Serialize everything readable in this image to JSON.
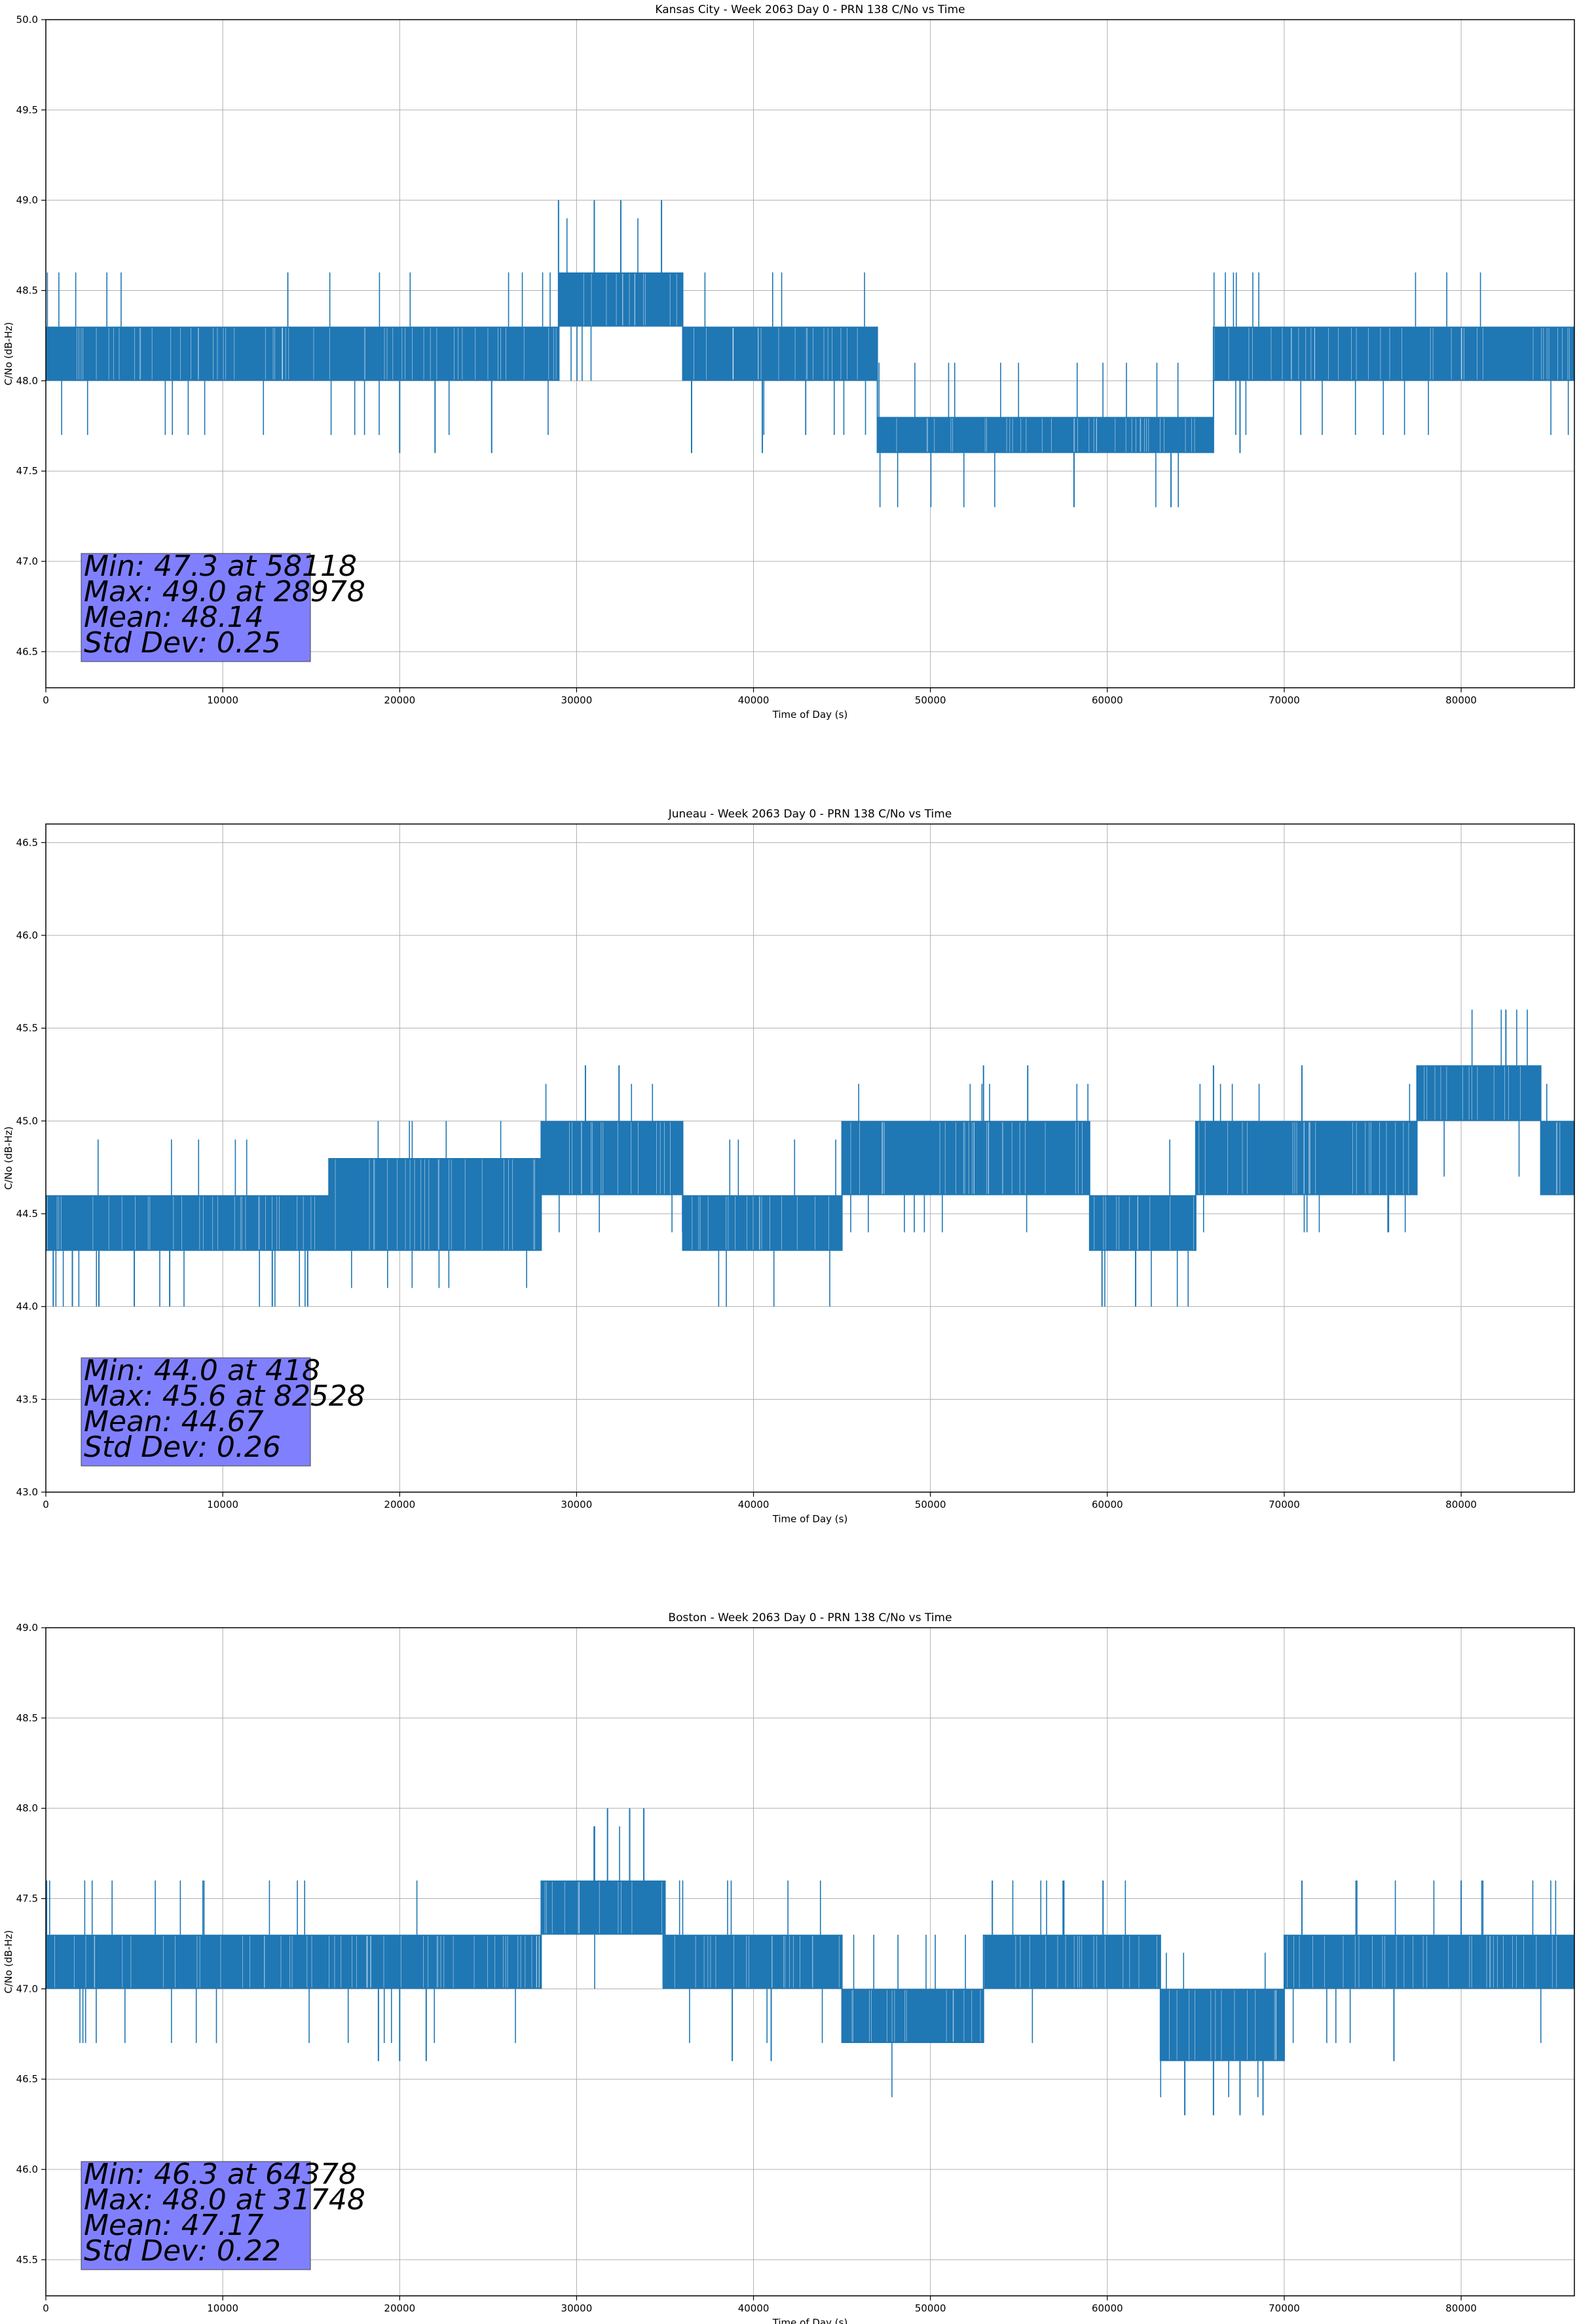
{
  "chart_data": [
    {
      "type": "line",
      "title": "Kansas City - Week 2063 Day 0 - PRN 138 C/No vs Time",
      "xlabel": "Time of Day (s)",
      "ylabel": "C/No (dB-Hz)",
      "xlim": [
        0,
        86400
      ],
      "ylim": [
        46.3,
        50.0
      ],
      "xticks": [
        0,
        10000,
        20000,
        30000,
        40000,
        50000,
        60000,
        70000,
        80000
      ],
      "yticks": [
        46.5,
        47.0,
        47.5,
        48.0,
        48.5,
        49.0,
        49.5,
        50.0
      ],
      "grid": true,
      "series_color": "#1f77b4",
      "bands": [
        {
          "x": [
            0,
            29000
          ],
          "low": 48.0,
          "high": 48.3
        },
        {
          "x": [
            29000,
            36000
          ],
          "low": 48.3,
          "high": 48.6
        },
        {
          "x": [
            36000,
            47000
          ],
          "low": 48.0,
          "high": 48.3
        },
        {
          "x": [
            47000,
            66000
          ],
          "low": 47.6,
          "high": 47.8
        },
        {
          "x": [
            66000,
            86400
          ],
          "low": 48.0,
          "high": 48.3
        }
      ],
      "spikes": [
        {
          "x": 58118,
          "y": 47.3
        },
        {
          "x": 63600,
          "y": 47.3
        },
        {
          "x": 28978,
          "y": 49.0
        },
        {
          "x": 31000,
          "y": 49.0
        },
        {
          "x": 32500,
          "y": 49.0
        },
        {
          "x": 34800,
          "y": 49.0
        },
        {
          "x": 20000,
          "y": 47.6
        },
        {
          "x": 22000,
          "y": 47.6
        },
        {
          "x": 25200,
          "y": 47.6
        },
        {
          "x": 36500,
          "y": 47.6
        },
        {
          "x": 40500,
          "y": 47.6
        },
        {
          "x": 67500,
          "y": 47.6
        }
      ],
      "stats": [
        "Min: 47.3 at 58118",
        "Max: 49.0 at 28978",
        "Mean: 48.14",
        "Std Dev: 0.25"
      ]
    },
    {
      "type": "line",
      "title": "Juneau - Week 2063 Day 0 - PRN 138 C/No vs Time",
      "xlabel": "Time of Day (s)",
      "ylabel": "C/No (dB-Hz)",
      "xlim": [
        0,
        86400
      ],
      "ylim": [
        43.0,
        46.6
      ],
      "xticks": [
        0,
        10000,
        20000,
        30000,
        40000,
        50000,
        60000,
        70000,
        80000
      ],
      "yticks": [
        43.0,
        43.5,
        44.0,
        44.5,
        45.0,
        45.5,
        46.0,
        46.5
      ],
      "grid": true,
      "series_color": "#1f77b4",
      "bands": [
        {
          "x": [
            0,
            16000
          ],
          "low": 44.3,
          "high": 44.6
        },
        {
          "x": [
            16000,
            28000
          ],
          "low": 44.3,
          "high": 44.8
        },
        {
          "x": [
            28000,
            36000
          ],
          "low": 44.6,
          "high": 45.0
        },
        {
          "x": [
            36000,
            45000
          ],
          "low": 44.3,
          "high": 44.6
        },
        {
          "x": [
            45000,
            59000
          ],
          "low": 44.6,
          "high": 45.0
        },
        {
          "x": [
            59000,
            65000
          ],
          "low": 44.3,
          "high": 44.6
        },
        {
          "x": [
            65000,
            77500
          ],
          "low": 44.6,
          "high": 45.0
        },
        {
          "x": [
            77500,
            84500
          ],
          "low": 45.0,
          "high": 45.3
        },
        {
          "x": [
            84500,
            86400
          ],
          "low": 44.6,
          "high": 45.0
        }
      ],
      "spikes": [
        {
          "x": 418,
          "y": 44.0
        },
        {
          "x": 1500,
          "y": 44.0
        },
        {
          "x": 3000,
          "y": 44.0
        },
        {
          "x": 5000,
          "y": 44.0
        },
        {
          "x": 7000,
          "y": 44.0
        },
        {
          "x": 12800,
          "y": 44.0
        },
        {
          "x": 14800,
          "y": 44.0
        },
        {
          "x": 59700,
          "y": 44.0
        },
        {
          "x": 61600,
          "y": 44.0
        },
        {
          "x": 82528,
          "y": 45.6
        },
        {
          "x": 30500,
          "y": 45.3
        },
        {
          "x": 32400,
          "y": 45.3
        },
        {
          "x": 53000,
          "y": 45.3
        },
        {
          "x": 55500,
          "y": 45.3
        },
        {
          "x": 66000,
          "y": 45.3
        },
        {
          "x": 71000,
          "y": 45.3
        }
      ],
      "stats": [
        "Min: 44.0 at 418",
        "Max: 45.6 at 82528",
        "Mean: 44.67",
        "Std Dev: 0.26"
      ]
    },
    {
      "type": "line",
      "title": "Boston - Week 2063 Day 0 - PRN 138 C/No vs Time",
      "xlabel": "Time of Day (s)",
      "ylabel": "C/No (dB-Hz)",
      "xlim": [
        0,
        86400
      ],
      "ylim": [
        45.3,
        49.0
      ],
      "xticks": [
        0,
        10000,
        20000,
        30000,
        40000,
        50000,
        60000,
        70000,
        80000
      ],
      "yticks": [
        45.5,
        46.0,
        46.5,
        47.0,
        47.5,
        48.0,
        48.5,
        49.0
      ],
      "grid": true,
      "series_color": "#1f77b4",
      "bands": [
        {
          "x": [
            0,
            28000
          ],
          "low": 47.0,
          "high": 47.3
        },
        {
          "x": [
            28000,
            35000
          ],
          "low": 47.3,
          "high": 47.6
        },
        {
          "x": [
            35000,
            45000
          ],
          "low": 47.0,
          "high": 47.3
        },
        {
          "x": [
            45000,
            53000
          ],
          "low": 46.7,
          "high": 47.0
        },
        {
          "x": [
            53000,
            59000
          ],
          "low": 47.0,
          "high": 47.3
        },
        {
          "x": [
            59000,
            63000
          ],
          "low": 47.0,
          "high": 47.3
        },
        {
          "x": [
            63000,
            70000
          ],
          "low": 46.6,
          "high": 47.0
        },
        {
          "x": [
            70000,
            86400
          ],
          "low": 47.0,
          "high": 47.3
        }
      ],
      "spikes": [
        {
          "x": 64378,
          "y": 46.3
        },
        {
          "x": 66000,
          "y": 46.3
        },
        {
          "x": 67500,
          "y": 46.3
        },
        {
          "x": 68800,
          "y": 46.3
        },
        {
          "x": 31748,
          "y": 48.0
        },
        {
          "x": 33000,
          "y": 48.0
        },
        {
          "x": 33800,
          "y": 48.0
        },
        {
          "x": 18800,
          "y": 46.6
        },
        {
          "x": 20000,
          "y": 46.6
        },
        {
          "x": 21500,
          "y": 46.6
        },
        {
          "x": 38800,
          "y": 46.6
        },
        {
          "x": 41000,
          "y": 46.6
        },
        {
          "x": 76200,
          "y": 46.6
        },
        {
          "x": 53500,
          "y": 47.6
        },
        {
          "x": 57500,
          "y": 47.6
        },
        {
          "x": 71000,
          "y": 47.6
        },
        {
          "x": 80000,
          "y": 47.6
        }
      ],
      "stats": [
        "Min: 46.3 at 64378",
        "Max: 48.0 at 31748",
        "Mean: 47.17",
        "Std Dev: 0.22"
      ]
    }
  ]
}
